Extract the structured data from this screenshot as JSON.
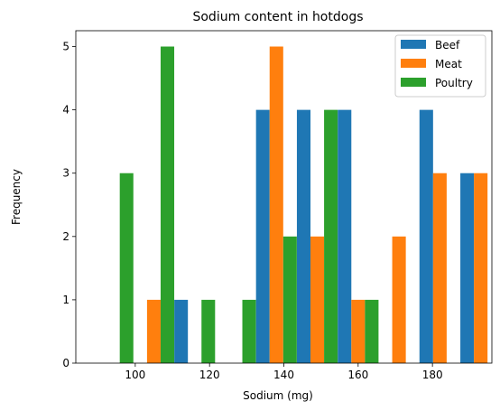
{
  "chart_data": {
    "type": "bar",
    "title": "Sodium content in hotdogs",
    "xlabel": "Sodium (mg)",
    "ylabel": "Frequency",
    "xlim": [
      84,
      196
    ],
    "ylim": [
      0,
      5.25
    ],
    "xticks": [
      100,
      120,
      140,
      160,
      180
    ],
    "yticks": [
      0,
      1,
      2,
      3,
      4,
      5
    ],
    "grid": false,
    "legend_position": "top-right",
    "bins": [
      {
        "x": 94,
        "values": [
          0,
          0,
          3
        ]
      },
      {
        "x": 105,
        "values": [
          0,
          1,
          5
        ]
      },
      {
        "x": 116,
        "values": [
          1,
          0,
          1
        ]
      },
      {
        "x": 127,
        "values": [
          0,
          0,
          1
        ]
      },
      {
        "x": 138,
        "values": [
          4,
          5,
          2
        ]
      },
      {
        "x": 149,
        "values": [
          4,
          2,
          4
        ]
      },
      {
        "x": 160,
        "values": [
          4,
          1,
          1
        ]
      },
      {
        "x": 171,
        "values": [
          0,
          2,
          0
        ]
      },
      {
        "x": 182,
        "values": [
          4,
          3,
          0
        ]
      },
      {
        "x": 193,
        "values": [
          3,
          3,
          0
        ]
      }
    ],
    "series": [
      {
        "name": "Beef",
        "color": "#1f77b4"
      },
      {
        "name": "Meat",
        "color": "#ff7f0e"
      },
      {
        "name": "Poultry",
        "color": "#2ca02c"
      }
    ]
  }
}
